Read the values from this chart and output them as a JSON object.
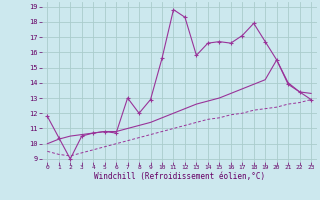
{
  "xlabel": "Windchill (Refroidissement éolien,°C)",
  "background_color": "#cce8ee",
  "grid_color": "#aacccc",
  "line_color": "#993399",
  "xlim": [
    -0.5,
    23.5
  ],
  "ylim": [
    8.8,
    19.3
  ],
  "yticks": [
    9,
    10,
    11,
    12,
    13,
    14,
    15,
    16,
    17,
    18,
    19
  ],
  "xticks": [
    0,
    1,
    2,
    3,
    4,
    5,
    6,
    7,
    8,
    9,
    10,
    11,
    12,
    13,
    14,
    15,
    16,
    17,
    18,
    19,
    20,
    21,
    22,
    23
  ],
  "line1_x": [
    0,
    1,
    2,
    3,
    4,
    5,
    6,
    7,
    8,
    9,
    10,
    11,
    12,
    13,
    14,
    15,
    16,
    17,
    18,
    19,
    20,
    21,
    22,
    23
  ],
  "line1_y": [
    11.8,
    10.4,
    9.0,
    10.5,
    10.7,
    10.8,
    10.7,
    13.0,
    12.0,
    12.9,
    15.6,
    18.8,
    18.3,
    15.8,
    16.6,
    16.7,
    16.6,
    17.1,
    17.9,
    16.7,
    15.5,
    13.9,
    13.4,
    12.9
  ],
  "line2_x": [
    0,
    1,
    2,
    3,
    4,
    5,
    6,
    7,
    8,
    9,
    10,
    11,
    12,
    13,
    14,
    15,
    16,
    17,
    18,
    19,
    20,
    21,
    22,
    23
  ],
  "line2_y": [
    10.0,
    10.3,
    10.5,
    10.6,
    10.7,
    10.8,
    10.8,
    11.0,
    11.2,
    11.4,
    11.7,
    12.0,
    12.3,
    12.6,
    12.8,
    13.0,
    13.3,
    13.6,
    13.9,
    14.2,
    15.5,
    14.0,
    13.4,
    13.3
  ],
  "line3_x": [
    0,
    1,
    2,
    3,
    4,
    5,
    6,
    7,
    8,
    9,
    10,
    11,
    12,
    13,
    14,
    15,
    16,
    17,
    18,
    19,
    20,
    21,
    22,
    23
  ],
  "line3_y": [
    9.5,
    9.3,
    9.2,
    9.4,
    9.6,
    9.8,
    10.0,
    10.2,
    10.4,
    10.6,
    10.8,
    11.0,
    11.2,
    11.4,
    11.6,
    11.7,
    11.9,
    12.0,
    12.2,
    12.3,
    12.4,
    12.6,
    12.7,
    12.9
  ]
}
